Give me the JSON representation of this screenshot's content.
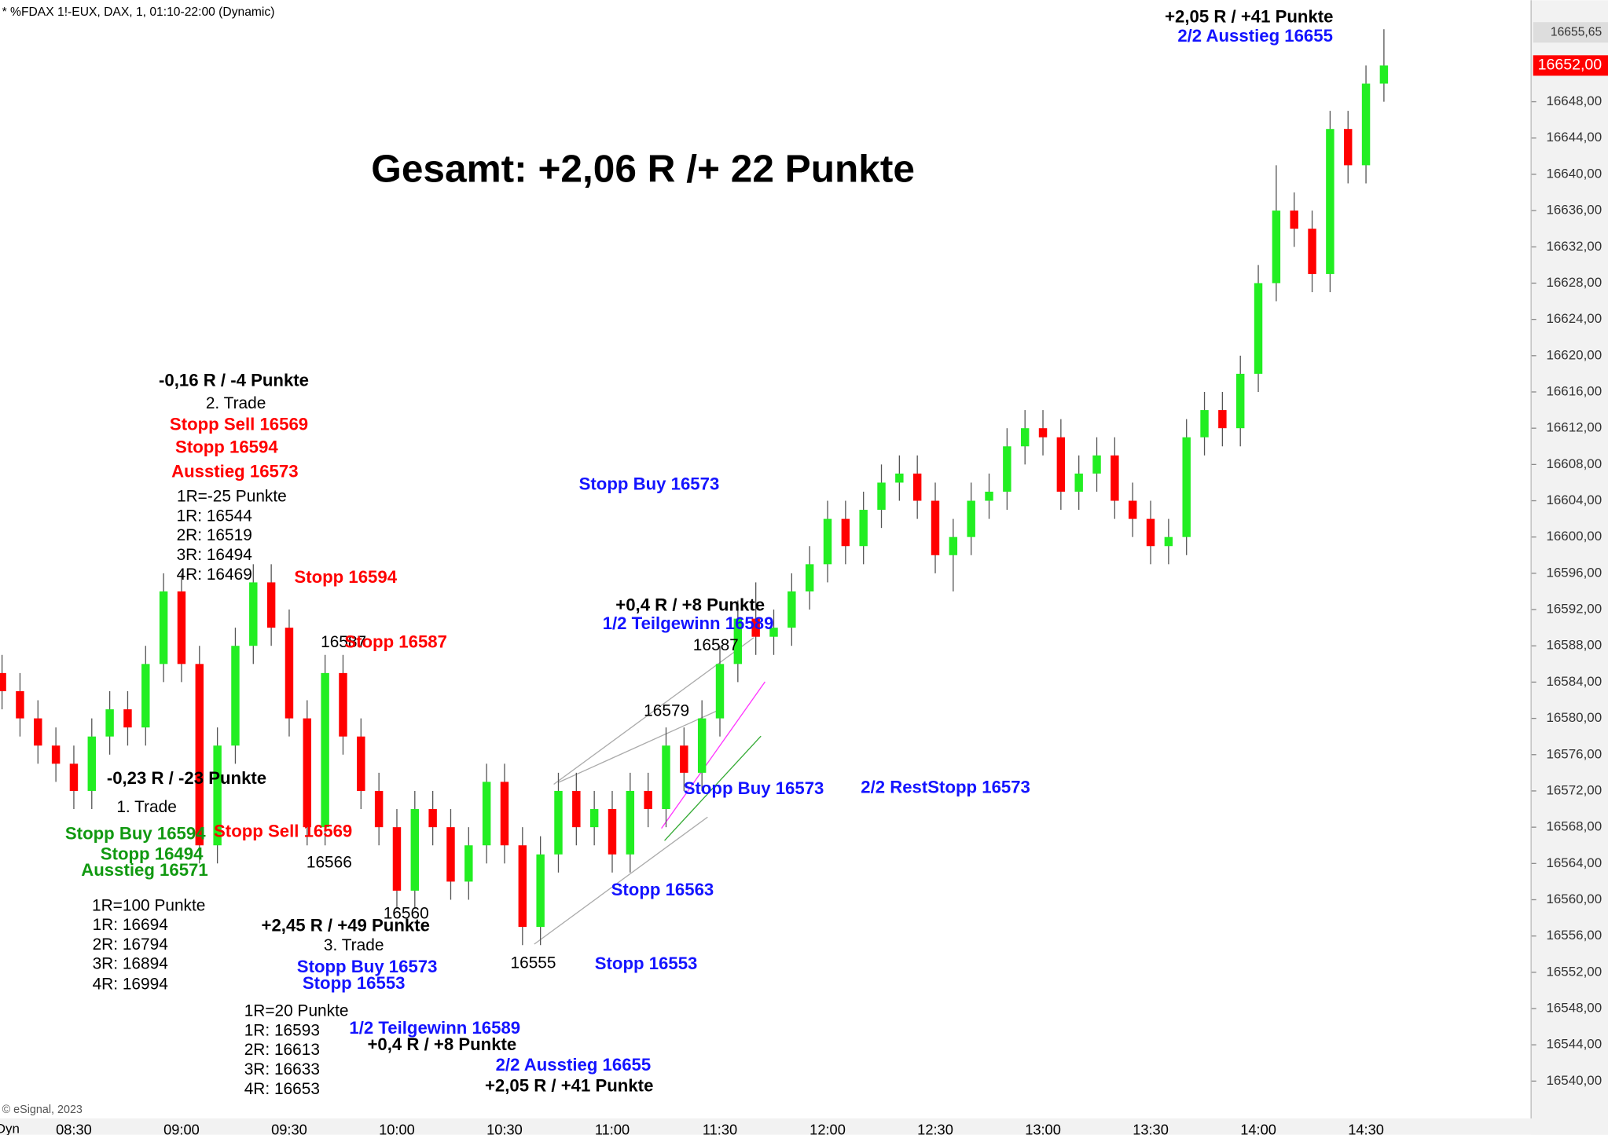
{
  "chart_data": {
    "type": "candlestick",
    "title": "* %FDAX 1!-EUX, DAX, 1, 01:10-22:00 (Dynamic)",
    "watermark": "© eSignal, 2023",
    "footer_label": "Dyn",
    "up_color": "#22ee22",
    "down_color": "#ff0000",
    "wick_color": "#555555",
    "categories": [
      null,
      null,
      null,
      null,
      "08:30",
      null,
      null,
      null,
      null,
      null,
      "09:00",
      null,
      null,
      null,
      null,
      null,
      "09:30",
      null,
      null,
      null,
      null,
      null,
      "10:00",
      null,
      null,
      null,
      null,
      null,
      "10:30",
      null,
      null,
      null,
      null,
      null,
      "11:00",
      null,
      null,
      null,
      null,
      null,
      "11:30",
      null,
      null,
      null,
      null,
      null,
      "12:00",
      null,
      null,
      null,
      null,
      null,
      "12:30",
      null,
      null,
      null,
      null,
      null,
      "13:00",
      null,
      null,
      null,
      null,
      null,
      "13:30",
      null,
      null,
      null,
      null,
      null,
      "14:00",
      null,
      null,
      null,
      null,
      null,
      "14:30",
      null
    ],
    "open": [
      16585,
      16583,
      16580,
      16577,
      16575,
      16572,
      16578,
      16581,
      16579,
      16586,
      16594,
      16586,
      16566,
      16577,
      16588,
      16595,
      16590,
      16580,
      16568,
      16585,
      16578,
      16572,
      16568,
      16561,
      16570,
      16568,
      16562,
      16566,
      16573,
      16566,
      16557,
      16565,
      16572,
      16568,
      16570,
      16565,
      16572,
      16570,
      16577,
      16574,
      16580,
      16586,
      16591,
      16589,
      16590,
      16594,
      16597,
      16602,
      16599,
      16603,
      16606,
      16607,
      16604,
      16598,
      16600,
      16604,
      16605,
      16610,
      16612,
      16611,
      16605,
      16607,
      16609,
      16604,
      16602,
      16599,
      16600,
      16611,
      16614,
      16612,
      16618,
      16628,
      16636,
      16634,
      16629,
      16645,
      16641,
      16650
    ],
    "high": [
      16587,
      16585,
      16582,
      16579,
      16577,
      16580,
      16583,
      16583,
      16588,
      16596,
      16596,
      16588,
      16579,
      16590,
      16597,
      16597,
      16592,
      16582,
      16587,
      16587,
      16580,
      16574,
      16570,
      16572,
      16572,
      16570,
      16568,
      16575,
      16575,
      16568,
      16567,
      16574,
      16574,
      16572,
      16572,
      16574,
      16574,
      16579,
      16579,
      16582,
      16588,
      16593,
      16595,
      16592,
      16596,
      16599,
      16604,
      16604,
      16605,
      16608,
      16609,
      16609,
      16606,
      16602,
      16606,
      16607,
      16612,
      16614,
      16614,
      16613,
      16609,
      16611,
      16611,
      16606,
      16604,
      16602,
      16613,
      16616,
      16616,
      16620,
      16630,
      16641,
      16638,
      16636,
      16647,
      16647,
      16652,
      16656
    ],
    "low": [
      16581,
      16578,
      16575,
      16573,
      16570,
      16570,
      16576,
      16577,
      16577,
      16584,
      16584,
      16564,
      16564,
      16575,
      16586,
      16588,
      16578,
      16566,
      16566,
      16576,
      16570,
      16566,
      16559,
      16559,
      16566,
      16560,
      16560,
      16564,
      16564,
      16555,
      16555,
      16563,
      16566,
      16566,
      16563,
      16563,
      16568,
      16568,
      16572,
      16572,
      16578,
      16584,
      16587,
      16587,
      16588,
      16592,
      16595,
      16597,
      16597,
      16601,
      16604,
      16602,
      16596,
      16594,
      16598,
      16602,
      16603,
      16608,
      16609,
      16603,
      16603,
      16605,
      16602,
      16600,
      16597,
      16597,
      16598,
      16609,
      16610,
      16610,
      16616,
      16626,
      16632,
      16627,
      16627,
      16639,
      16639,
      16648
    ],
    "close": [
      16583,
      16580,
      16577,
      16575,
      16572,
      16578,
      16581,
      16579,
      16586,
      16594,
      16586,
      16566,
      16577,
      16588,
      16595,
      16590,
      16580,
      16568,
      16585,
      16578,
      16572,
      16568,
      16561,
      16570,
      16568,
      16562,
      16566,
      16573,
      16566,
      16557,
      16565,
      16572,
      16568,
      16570,
      16565,
      16572,
      16570,
      16577,
      16574,
      16580,
      16586,
      16591,
      16589,
      16590,
      16594,
      16597,
      16602,
      16599,
      16603,
      16606,
      16607,
      16604,
      16598,
      16600,
      16604,
      16605,
      16610,
      16612,
      16611,
      16605,
      16607,
      16609,
      16604,
      16602,
      16599,
      16600,
      16611,
      16614,
      16612,
      16618,
      16628,
      16636,
      16634,
      16629,
      16645,
      16641,
      16650,
      16652
    ],
    "ylim": [
      16536,
      16659.2
    ],
    "yticks": [
      {
        "value": 16540,
        "label": "16540,00"
      },
      {
        "value": 16544,
        "label": "16544,00"
      },
      {
        "value": 16548,
        "label": "16548,00"
      },
      {
        "value": 16552,
        "label": "16552,00"
      },
      {
        "value": 16556,
        "label": "16556,00"
      },
      {
        "value": 16560,
        "label": "16560,00"
      },
      {
        "value": 16564,
        "label": "16564,00"
      },
      {
        "value": 16568,
        "label": "16568,00"
      },
      {
        "value": 16572,
        "label": "16572,00"
      },
      {
        "value": 16576,
        "label": "16576,00"
      },
      {
        "value": 16580,
        "label": "16580,00"
      },
      {
        "value": 16584,
        "label": "16584,00"
      },
      {
        "value": 16588,
        "label": "16588,00"
      },
      {
        "value": 16592,
        "label": "16592,00"
      },
      {
        "value": 16596,
        "label": "16596,00"
      },
      {
        "value": 16600,
        "label": "16600,00"
      },
      {
        "value": 16604,
        "label": "16604,00"
      },
      {
        "value": 16608,
        "label": "16608,00"
      },
      {
        "value": 16612,
        "label": "16612,00"
      },
      {
        "value": 16616,
        "label": "16616,00"
      },
      {
        "value": 16620,
        "label": "16620,00"
      },
      {
        "value": 16624,
        "label": "16624,00"
      },
      {
        "value": 16628,
        "label": "16628,00"
      },
      {
        "value": 16632,
        "label": "16632,00"
      },
      {
        "value": 16636,
        "label": "16636,00"
      },
      {
        "value": 16640,
        "label": "16640,00"
      },
      {
        "value": 16644,
        "label": "16644,00"
      },
      {
        "value": 16648,
        "label": "16648,00"
      }
    ],
    "price_markers": [
      {
        "value": 16655.65,
        "label": "16655,65",
        "color": "#dddddd",
        "text_color": "#333333"
      },
      {
        "value": 16652,
        "label": "16652,00",
        "color": "#ff0000",
        "text_color": "#ffffff"
      }
    ],
    "annotations": [
      {
        "text": "+2,05 R / +41 Punkte",
        "color": "#000000",
        "weight": "bold"
      },
      {
        "text": "2/2 Ausstieg 16655",
        "color": "#1414ff",
        "weight": "bold"
      },
      {
        "text": "Gesamt: +2,06 R /+ 22 Punkte",
        "color": "#000000",
        "weight": "headline"
      },
      {
        "text": "-0,16 R / -4 Punkte",
        "color": "#000000",
        "weight": "bold"
      },
      {
        "text": "2. Trade",
        "color": "#000000",
        "weight": "normal"
      },
      {
        "text": "Stopp Sell 16569",
        "color": "#ff0000",
        "weight": "bold"
      },
      {
        "text": "Stopp 16594",
        "color": "#ff0000",
        "weight": "bold"
      },
      {
        "text": "Ausstieg 16573",
        "color": "#ff0000",
        "weight": "bold"
      },
      {
        "text": "1R=-25 Punkte",
        "color": "#000000",
        "weight": "normal"
      },
      {
        "text": "1R: 16544",
        "color": "#000000",
        "weight": "normal"
      },
      {
        "text": "2R: 16519",
        "color": "#000000",
        "weight": "normal"
      },
      {
        "text": "3R: 16494",
        "color": "#000000",
        "weight": "normal"
      },
      {
        "text": "4R: 16469",
        "color": "#000000",
        "weight": "normal"
      },
      {
        "text": "Stopp 16594",
        "color": "#ff0000",
        "weight": "bold"
      },
      {
        "text": "16587",
        "color": "#000000",
        "weight": "normal"
      },
      {
        "text": "Stopp 16587",
        "color": "#ff0000",
        "weight": "bold"
      },
      {
        "text": "Stopp Buy 16573",
        "color": "#1414ff",
        "weight": "bold"
      },
      {
        "text": "+0,4 R / +8 Punkte",
        "color": "#000000",
        "weight": "bold"
      },
      {
        "text": "1/2 Teilgewinn 16589",
        "color": "#1414ff",
        "weight": "bold"
      },
      {
        "text": "16587",
        "color": "#000000",
        "weight": "normal"
      },
      {
        "text": "16579",
        "color": "#000000",
        "weight": "normal"
      },
      {
        "text": "-0,23 R / -23 Punkte",
        "color": "#000000",
        "weight": "bold"
      },
      {
        "text": "1. Trade",
        "color": "#000000",
        "weight": "normal"
      },
      {
        "text": "Stopp Buy 16594",
        "color": "#119911",
        "weight": "bold"
      },
      {
        "text": "Stopp 16494",
        "color": "#119911",
        "weight": "bold"
      },
      {
        "text": "Ausstieg 16571",
        "color": "#119911",
        "weight": "bold"
      },
      {
        "text": "Stopp Sell 16569",
        "color": "#ff0000",
        "weight": "bold"
      },
      {
        "text": "16566",
        "color": "#000000",
        "weight": "normal"
      },
      {
        "text": "1R=100 Punkte",
        "color": "#000000",
        "weight": "normal"
      },
      {
        "text": "1R: 16694",
        "color": "#000000",
        "weight": "normal"
      },
      {
        "text": "2R: 16794",
        "color": "#000000",
        "weight": "normal"
      },
      {
        "text": "3R: 16894",
        "color": "#000000",
        "weight": "normal"
      },
      {
        "text": "4R: 16994",
        "color": "#000000",
        "weight": "normal"
      },
      {
        "text": "16560",
        "color": "#000000",
        "weight": "normal"
      },
      {
        "text": "+2,45 R / +49 Punkte",
        "color": "#000000",
        "weight": "bold"
      },
      {
        "text": "3. Trade",
        "color": "#000000",
        "weight": "normal"
      },
      {
        "text": "Stopp Buy 16573",
        "color": "#1414ff",
        "weight": "bold"
      },
      {
        "text": "Stopp 16553",
        "color": "#1414ff",
        "weight": "bold"
      },
      {
        "text": "1R=20 Punkte",
        "color": "#000000",
        "weight": "normal"
      },
      {
        "text": "1R: 16593",
        "color": "#000000",
        "weight": "normal"
      },
      {
        "text": "2R: 16613",
        "color": "#000000",
        "weight": "normal"
      },
      {
        "text": "3R: 16633",
        "color": "#000000",
        "weight": "normal"
      },
      {
        "text": "4R: 16653",
        "color": "#000000",
        "weight": "normal"
      },
      {
        "text": "1/2 Teilgewinn 16589",
        "color": "#1414ff",
        "weight": "bold"
      },
      {
        "text": "+0,4 R / +8 Punkte",
        "color": "#000000",
        "weight": "bold"
      },
      {
        "text": "2/2 Ausstieg 16655",
        "color": "#1414ff",
        "weight": "bold"
      },
      {
        "text": "+2,05 R / +41 Punkte",
        "color": "#000000",
        "weight": "bold"
      },
      {
        "text": "16555",
        "color": "#000000",
        "weight": "normal"
      },
      {
        "text": "Stopp 16553",
        "color": "#1414ff",
        "weight": "bold"
      },
      {
        "text": "Stopp 16563",
        "color": "#1414ff",
        "weight": "bold"
      },
      {
        "text": "Stopp Buy 16573",
        "color": "#1414ff",
        "weight": "bold"
      },
      {
        "text": "2/2 RestStopp 16573",
        "color": "#1414ff",
        "weight": "bold"
      }
    ]
  }
}
